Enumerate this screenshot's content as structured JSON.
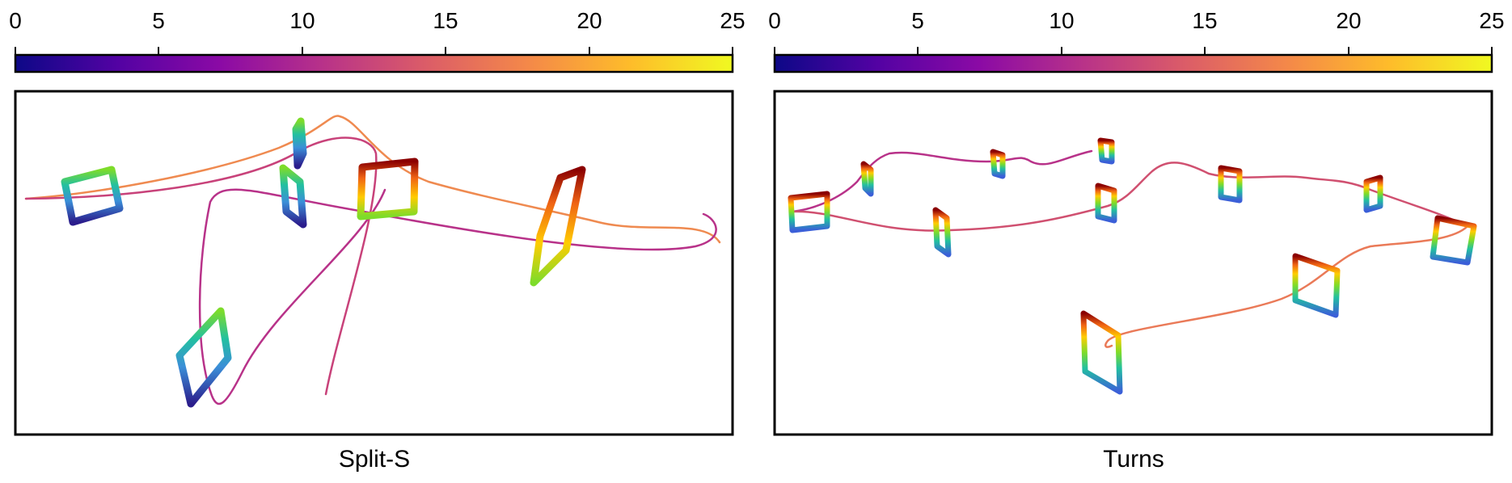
{
  "chart_data": [
    {
      "type": "other",
      "colorbar": {
        "ticks": [
          "0",
          "5",
          "10",
          "15",
          "20",
          "25"
        ],
        "range": [
          0,
          25
        ],
        "colormap": "plasma"
      },
      "caption": "Split-S"
    },
    {
      "type": "other",
      "colorbar": {
        "ticks": [
          "0",
          "5",
          "10",
          "15",
          "20",
          "25"
        ],
        "range": [
          0,
          25
        ],
        "colormap": "plasma"
      },
      "caption": "Turns"
    }
  ],
  "colors": {
    "plasma_stops": [
      "#0d0887",
      "#5302a3",
      "#8b0aa5",
      "#b83289",
      "#db5c68",
      "#f48849",
      "#febc2a",
      "#f0f921"
    ],
    "gate_stops": [
      "#2b1d8c",
      "#3b6fd8",
      "#22c0c0",
      "#6fd83a",
      "#ffcc00",
      "#f06414",
      "#8b0000"
    ]
  }
}
